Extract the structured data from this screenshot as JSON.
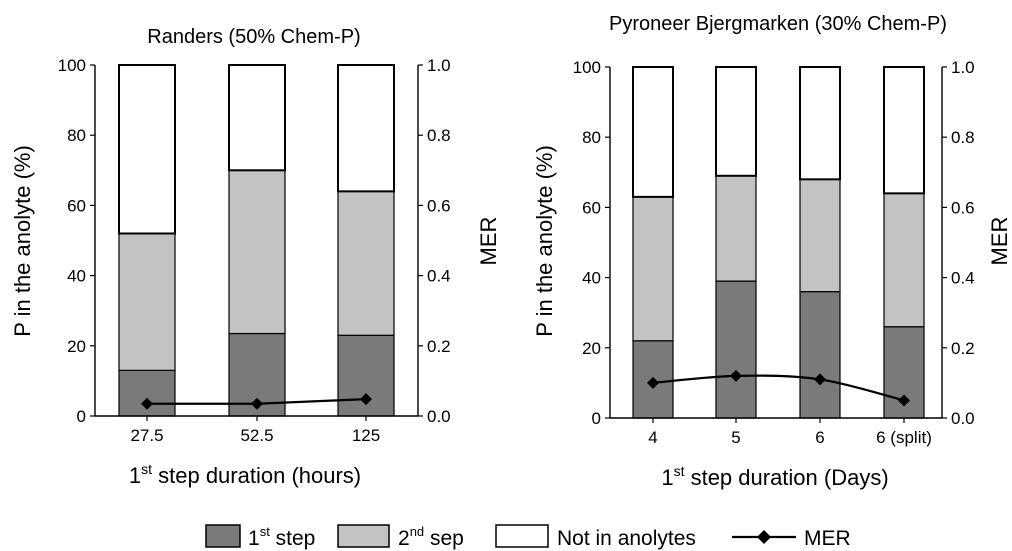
{
  "legend": {
    "step1": {
      "main": "1",
      "sup": "st",
      "rest": " step"
    },
    "step2": {
      "main": "2",
      "sup": "nd",
      "rest": " sep"
    },
    "not_in": "Not in anolytes",
    "mer": "MER"
  },
  "colors": {
    "step1": "#7a7a7a",
    "step2": "#c3c3c3",
    "not_in": "#ffffff",
    "outline": "#000000",
    "mer_line": "#000000"
  },
  "chart_data": [
    {
      "type": "bar",
      "stacked": true,
      "title": "Randers (50% Chem-P)",
      "xlabel": {
        "main": "1",
        "sup": "st",
        "rest": " step duration (hours)"
      },
      "ylabel": "P in the anolyte (%)",
      "y2label": "MER",
      "ylim": [
        0,
        100
      ],
      "y2lim": [
        0,
        1.0
      ],
      "yticks": [
        "0",
        "20",
        "40",
        "60",
        "80",
        "100"
      ],
      "y2ticks": [
        "0.0",
        "0.2",
        "0.4",
        "0.6",
        "0.8",
        "1.0"
      ],
      "categories": [
        "27.5",
        "52.5",
        "125"
      ],
      "series": [
        {
          "name": "1st step",
          "values": [
            13,
            23.5,
            23
          ]
        },
        {
          "name": "2nd sep",
          "values": [
            39,
            46.5,
            41
          ]
        },
        {
          "name": "Not in anolytes",
          "values": [
            48,
            30,
            36
          ]
        }
      ],
      "line_series": {
        "name": "MER",
        "axis": "right",
        "values": [
          0.035,
          0.035,
          0.048
        ]
      }
    },
    {
      "type": "bar",
      "stacked": true,
      "title": "Pyroneer Bjergmarken (30% Chem-P)",
      "xlabel": {
        "main": "1",
        "sup": "st",
        "rest": " step duration (Days)"
      },
      "ylabel": "P in the anolyte (%)",
      "y2label": "MER",
      "ylim": [
        0,
        100
      ],
      "y2lim": [
        0,
        1.0
      ],
      "yticks": [
        "0",
        "20",
        "40",
        "60",
        "80",
        "100"
      ],
      "y2ticks": [
        "0.0",
        "0.2",
        "0.4",
        "0.6",
        "0.8",
        "1.0"
      ],
      "categories": [
        "4",
        "5",
        "6",
        "6 (split)"
      ],
      "series": [
        {
          "name": "1st step",
          "values": [
            22,
            39,
            36,
            26
          ]
        },
        {
          "name": "2nd sep",
          "values": [
            41,
            30,
            32,
            38
          ]
        },
        {
          "name": "Not in anolytes",
          "values": [
            37,
            31,
            32,
            36
          ]
        }
      ],
      "line_series": {
        "name": "MER",
        "axis": "right",
        "values": [
          0.1,
          0.12,
          0.11,
          0.05
        ]
      }
    }
  ]
}
